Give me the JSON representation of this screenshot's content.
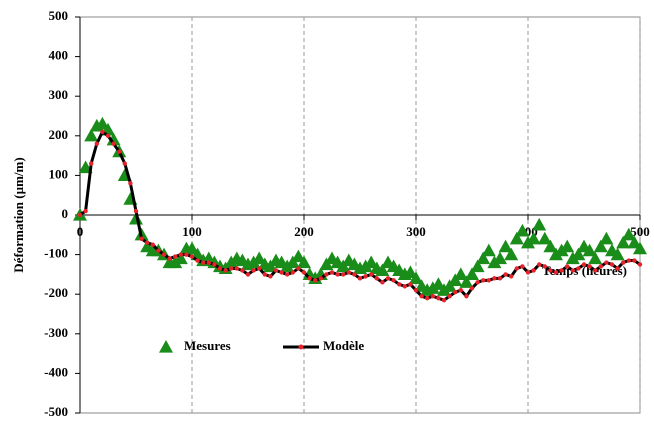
{
  "chart_data": {
    "type": "line",
    "ylabel": "Déformation (µm/m)",
    "xlabel": "Temps (heures)",
    "x": [
      0,
      5,
      10,
      15,
      20,
      25,
      30,
      35,
      40,
      45,
      50,
      55,
      60,
      65,
      70,
      75,
      80,
      85,
      90,
      95,
      100,
      105,
      110,
      115,
      120,
      125,
      130,
      135,
      140,
      145,
      150,
      155,
      160,
      165,
      170,
      175,
      180,
      185,
      190,
      195,
      200,
      205,
      210,
      215,
      220,
      225,
      230,
      235,
      240,
      245,
      250,
      255,
      260,
      265,
      270,
      275,
      280,
      285,
      290,
      295,
      300,
      305,
      310,
      315,
      320,
      325,
      330,
      335,
      340,
      345,
      350,
      355,
      360,
      365,
      370,
      375,
      380,
      385,
      390,
      395,
      400,
      405,
      410,
      415,
      420,
      425,
      430,
      435,
      440,
      445,
      450,
      455,
      460,
      465,
      470,
      475,
      480,
      485,
      490,
      495,
      500
    ],
    "series": [
      {
        "name": "Mesures",
        "color": "#1a8c1a",
        "marker": "triangle",
        "values": [
          0,
          120,
          200,
          225,
          230,
          215,
          190,
          160,
          100,
          40,
          -10,
          -50,
          -80,
          -90,
          -90,
          -100,
          -120,
          -120,
          -110,
          -85,
          -85,
          -100,
          -115,
          -110,
          -120,
          -130,
          -135,
          -120,
          -110,
          -115,
          -125,
          -120,
          -110,
          -125,
          -130,
          -115,
          -120,
          -130,
          -120,
          -105,
          -120,
          -150,
          -160,
          -150,
          -125,
          -110,
          -120,
          -130,
          -115,
          -125,
          -135,
          -130,
          -120,
          -135,
          -140,
          -120,
          -130,
          -140,
          -150,
          -145,
          -160,
          -180,
          -190,
          -185,
          -175,
          -190,
          -180,
          -165,
          -150,
          -170,
          -150,
          -130,
          -110,
          -90,
          -120,
          -110,
          -80,
          -100,
          -60,
          -40,
          -70,
          -60,
          -25,
          -60,
          -80,
          -100,
          -90,
          -80,
          -110,
          -100,
          -80,
          -90,
          -110,
          -80,
          -60,
          -90,
          -100,
          -70,
          -50,
          -70,
          -85
        ]
      },
      {
        "name": "Modèle",
        "color": "#000000",
        "marker_color": "#e8222a",
        "marker": "dot-line",
        "values": [
          0,
          10,
          130,
          180,
          210,
          200,
          180,
          160,
          130,
          80,
          10,
          -60,
          -70,
          -75,
          -90,
          -100,
          -110,
          -105,
          -100,
          -100,
          -105,
          -115,
          -120,
          -120,
          -125,
          -135,
          -140,
          -135,
          -135,
          -140,
          -150,
          -140,
          -135,
          -150,
          -155,
          -140,
          -145,
          -150,
          -145,
          -135,
          -145,
          -160,
          -165,
          -160,
          -150,
          -145,
          -150,
          -150,
          -145,
          -150,
          -160,
          -155,
          -150,
          -160,
          -170,
          -160,
          -165,
          -175,
          -180,
          -175,
          -190,
          -205,
          -210,
          -205,
          -210,
          -215,
          -205,
          -195,
          -190,
          -205,
          -185,
          -170,
          -165,
          -165,
          -160,
          -160,
          -150,
          -155,
          -135,
          -130,
          -145,
          -140,
          -125,
          -130,
          -140,
          -145,
          -140,
          -130,
          -140,
          -135,
          -125,
          -130,
          -140,
          -130,
          -120,
          -125,
          -135,
          -120,
          -115,
          -115,
          -125
        ]
      }
    ],
    "xlim": [
      0,
      500
    ],
    "xticks": [
      0,
      100,
      200,
      300,
      400,
      500
    ],
    "ylim": [
      -500,
      500
    ],
    "yticks": [
      -500,
      -400,
      -300,
      -200,
      -100,
      0,
      100,
      200,
      300,
      400,
      500
    ],
    "grid": "x-dashed",
    "legend": "lower left"
  }
}
